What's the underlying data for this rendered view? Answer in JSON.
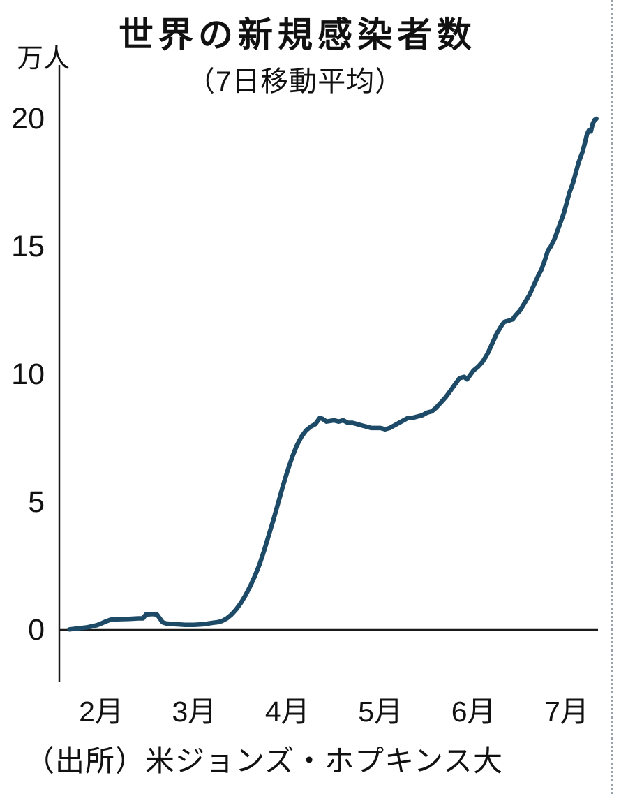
{
  "title": "世界の新規感染者数",
  "subtitle": "（7日移動平均）",
  "unit_label": "万人",
  "source": "（出所）米ジョンズ・ホプキンス大",
  "chart_data": {
    "type": "line",
    "title": "世界の新規感染者数（7日移動平均）",
    "ylabel": "万人",
    "xlabel": "",
    "ylim": [
      0,
      20
    ],
    "xlim": [
      0.66,
      6.35
    ],
    "grid": false,
    "legend": false,
    "line_color": "#1d4a66",
    "axis_color": "#1a1a1a",
    "y_ticks": [
      0,
      5,
      10,
      15,
      20
    ],
    "x_ticks": [
      {
        "pos": 1,
        "label": "2月"
      },
      {
        "pos": 2,
        "label": "3月"
      },
      {
        "pos": 3,
        "label": "4月"
      },
      {
        "pos": 4,
        "label": "5月"
      },
      {
        "pos": 5,
        "label": "6月"
      },
      {
        "pos": 6,
        "label": "7月"
      }
    ],
    "x_unit": "month position (1 = 2月, 6 = 7月)",
    "x": [
      0.66,
      0.75,
      0.85,
      0.95,
      1.0,
      1.05,
      1.1,
      1.2,
      1.3,
      1.4,
      1.45,
      1.48,
      1.55,
      1.6,
      1.63,
      1.66,
      1.7,
      1.8,
      1.9,
      2.0,
      2.1,
      2.2,
      2.25,
      2.3,
      2.35,
      2.4,
      2.45,
      2.5,
      2.55,
      2.6,
      2.65,
      2.7,
      2.75,
      2.8,
      2.85,
      2.9,
      2.95,
      3.0,
      3.05,
      3.1,
      3.15,
      3.2,
      3.25,
      3.3,
      3.35,
      3.38,
      3.42,
      3.5,
      3.55,
      3.6,
      3.65,
      3.7,
      3.75,
      3.8,
      3.85,
      3.9,
      4.0,
      4.05,
      4.1,
      4.15,
      4.2,
      4.25,
      4.3,
      4.35,
      4.4,
      4.45,
      4.5,
      4.55,
      4.6,
      4.65,
      4.7,
      4.75,
      4.8,
      4.85,
      4.9,
      4.93,
      4.97,
      5.0,
      5.05,
      5.1,
      5.15,
      5.2,
      5.25,
      5.3,
      5.33,
      5.38,
      5.42,
      5.45,
      5.5,
      5.55,
      5.6,
      5.65,
      5.7,
      5.73,
      5.77,
      5.8,
      5.83,
      5.87,
      5.9,
      5.93,
      5.97,
      6.0,
      6.03,
      6.07,
      6.1,
      6.13,
      6.17,
      6.2,
      6.22,
      6.24,
      6.26,
      6.28,
      6.3,
      6.32
    ],
    "y": [
      0.02,
      0.06,
      0.1,
      0.18,
      0.25,
      0.33,
      0.4,
      0.42,
      0.43,
      0.45,
      0.45,
      0.6,
      0.62,
      0.6,
      0.45,
      0.3,
      0.25,
      0.22,
      0.2,
      0.2,
      0.22,
      0.28,
      0.3,
      0.35,
      0.45,
      0.6,
      0.8,
      1.05,
      1.35,
      1.7,
      2.1,
      2.55,
      3.1,
      3.7,
      4.3,
      4.95,
      5.6,
      6.2,
      6.75,
      7.2,
      7.55,
      7.8,
      7.95,
      8.05,
      8.3,
      8.25,
      8.15,
      8.2,
      8.15,
      8.2,
      8.1,
      8.1,
      8.05,
      8.0,
      7.95,
      7.9,
      7.9,
      7.85,
      7.9,
      8.0,
      8.1,
      8.2,
      8.3,
      8.3,
      8.35,
      8.4,
      8.5,
      8.55,
      8.7,
      8.9,
      9.1,
      9.35,
      9.6,
      9.85,
      9.9,
      9.8,
      10.0,
      10.15,
      10.3,
      10.5,
      10.8,
      11.2,
      11.6,
      11.9,
      12.05,
      12.1,
      12.15,
      12.3,
      12.5,
      12.8,
      13.1,
      13.5,
      13.9,
      14.1,
      14.5,
      14.85,
      15.0,
      15.3,
      15.6,
      15.9,
      16.3,
      16.7,
      17.1,
      17.5,
      17.9,
      18.3,
      18.7,
      19.1,
      19.4,
      19.55,
      19.5,
      19.8,
      19.95,
      20.0
    ]
  }
}
